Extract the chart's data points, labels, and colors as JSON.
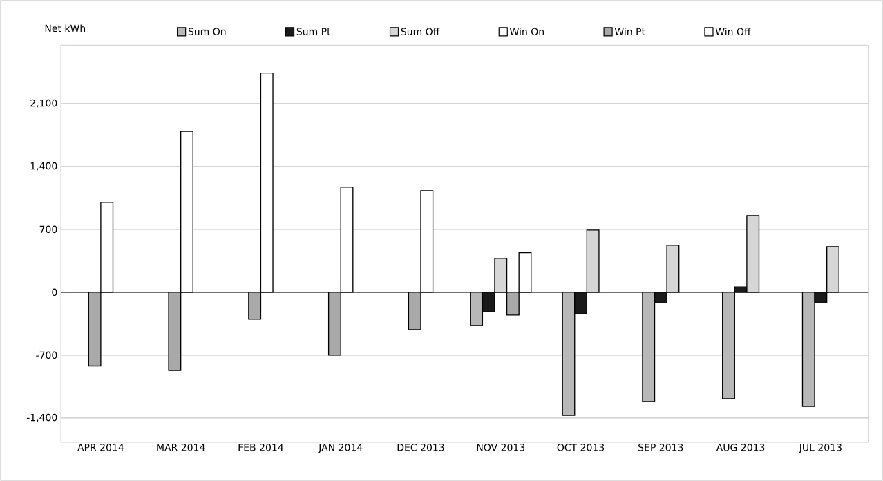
{
  "chart_data": {
    "type": "bar",
    "legend_title": "Net kWh",
    "categories": [
      "APR 2014",
      "MAR 2014",
      "FEB 2014",
      "JAN 2014",
      "DEC 2013",
      "NOV 2013",
      "OCT 2013",
      "SEP 2013",
      "AUG 2013",
      "JUL 2013"
    ],
    "series": [
      {
        "name": "Sum On",
        "color": "#b8b8b8",
        "values": [
          null,
          null,
          null,
          null,
          null,
          -370,
          -1370,
          -1215,
          -1185,
          -1270
        ]
      },
      {
        "name": "Sum Pt",
        "color": "#1a1a1a",
        "values": [
          null,
          null,
          null,
          null,
          null,
          -215,
          -240,
          -115,
          60,
          -115
        ]
      },
      {
        "name": "Sum Off",
        "color": "#d6d6d6",
        "values": [
          null,
          null,
          null,
          null,
          null,
          377,
          692,
          523,
          854,
          508
        ]
      },
      {
        "name": "Win On",
        "color": "#ffffff",
        "values": [
          null,
          null,
          null,
          null,
          null,
          null,
          null,
          null,
          null,
          null
        ]
      },
      {
        "name": "Win Pt",
        "color": "#a9a9a9",
        "values": [
          -820,
          -870,
          -300,
          -700,
          -415,
          -254,
          null,
          null,
          null,
          null
        ]
      },
      {
        "name": "Win Off",
        "color": "#ffffff",
        "values": [
          1000,
          1790,
          2440,
          1170,
          1130,
          440,
          null,
          null,
          null,
          null
        ]
      }
    ],
    "ylim": [
      -1670,
      2750
    ],
    "yticks": [
      {
        "value": -1400,
        "label": "-1,400"
      },
      -700,
      0,
      700,
      {
        "value": 1400,
        "label": "1,400"
      },
      {
        "value": 2100,
        "label": "2,100"
      }
    ],
    "grid": "y",
    "legend": "top"
  }
}
